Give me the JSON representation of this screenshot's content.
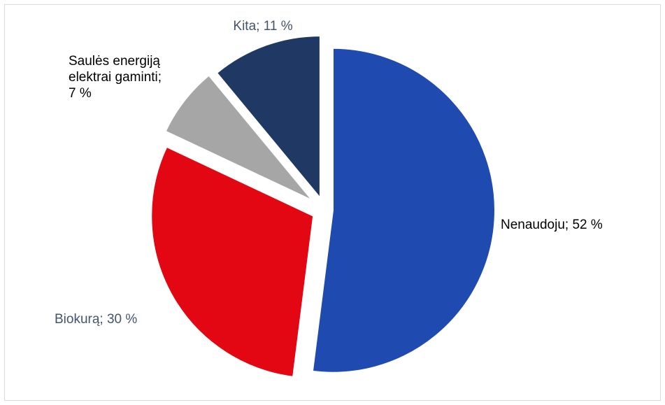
{
  "chart_data": {
    "type": "pie",
    "title": "",
    "slices": [
      {
        "label": "Nenaudoju; 52 %",
        "value": 52,
        "color": "#1f4bb0",
        "label_color": "#000000"
      },
      {
        "label": "Biokurą; 30 %",
        "value": 30,
        "color": "#e30613",
        "label_color": "#44546a"
      },
      {
        "label": "Saulės energiją elektrai gaminti; 7 %",
        "label_lines": [
          "Saulės energiją",
          "elektrai gaminti;",
          "7 %"
        ],
        "value": 7,
        "color": "#a6a6a6",
        "label_color": "#000000"
      },
      {
        "label": "Kita; 11 %",
        "value": 11,
        "color": "#1f3864",
        "label_color": "#44546a"
      }
    ],
    "exploded": true,
    "start_angle": "12 o'clock, clockwise",
    "legend": "none"
  }
}
